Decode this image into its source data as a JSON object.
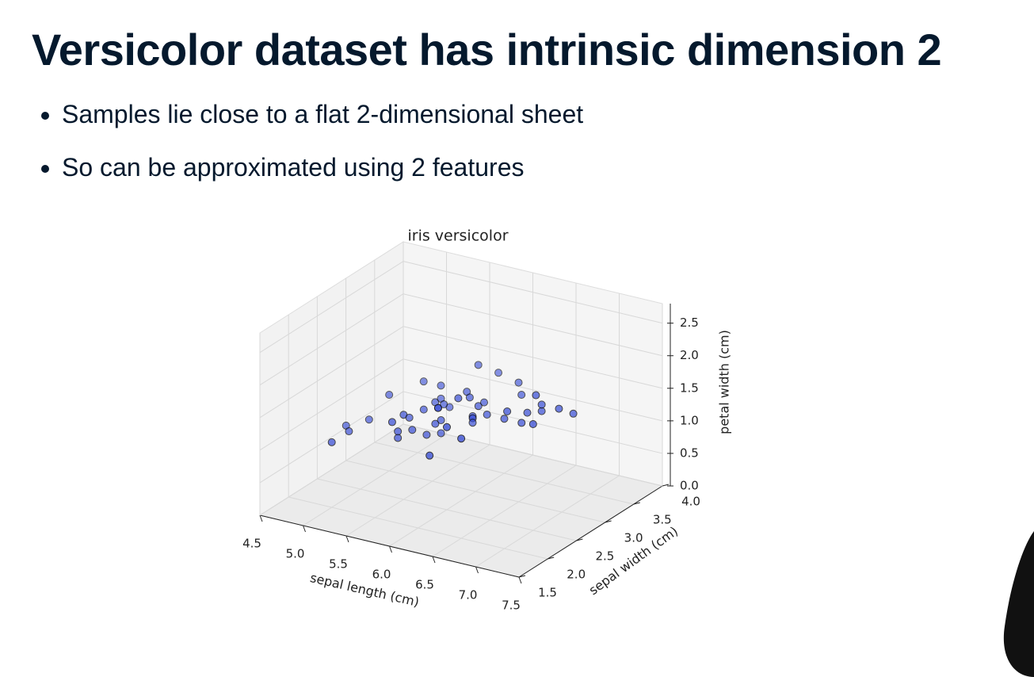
{
  "title": "Versicolor dataset has intrinsic dimension 2",
  "bullets": [
    "Samples lie close to a flat 2-dimensional sheet",
    "So can be approximated using 2 features"
  ],
  "chart_data": {
    "type": "scatter3d",
    "title": "iris versicolor",
    "x_label": "sepal length (cm)",
    "y_label": "sepal width (cm)",
    "z_label": "petal width (cm)",
    "x": [
      7.0,
      6.4,
      6.9,
      5.5,
      6.5,
      5.7,
      6.3,
      4.9,
      6.6,
      5.2,
      5.0,
      5.9,
      6.0,
      6.1,
      5.6,
      6.7,
      5.6,
      5.8,
      6.2,
      5.6,
      5.9,
      6.1,
      6.3,
      6.1,
      6.4,
      6.6,
      6.8,
      6.7,
      6.0,
      5.7,
      5.5,
      5.5,
      5.8,
      6.0,
      5.4,
      6.0,
      6.7,
      6.3,
      5.6,
      5.5,
      5.5,
      6.1,
      5.8,
      5.0,
      5.6,
      5.7,
      5.7,
      6.2,
      5.1,
      5.7
    ],
    "y": [
      3.2,
      3.2,
      3.1,
      2.3,
      2.8,
      2.8,
      3.3,
      2.4,
      2.9,
      2.7,
      2.0,
      3.0,
      2.2,
      2.9,
      2.9,
      3.1,
      3.0,
      2.7,
      2.2,
      2.5,
      3.2,
      2.8,
      2.5,
      2.8,
      2.9,
      3.0,
      2.8,
      3.0,
      2.9,
      2.6,
      2.4,
      2.4,
      2.7,
      2.7,
      3.0,
      3.4,
      3.1,
      2.3,
      3.0,
      2.5,
      2.6,
      3.0,
      2.6,
      2.3,
      2.7,
      3.0,
      2.9,
      2.9,
      2.5,
      2.8
    ],
    "z": [
      1.4,
      1.5,
      1.5,
      1.3,
      1.5,
      1.3,
      1.6,
      1.0,
      1.3,
      1.4,
      1.0,
      1.5,
      1.0,
      1.4,
      1.3,
      1.4,
      1.5,
      1.0,
      1.5,
      1.1,
      1.8,
      1.3,
      1.5,
      1.2,
      1.3,
      1.4,
      1.4,
      1.7,
      1.5,
      1.0,
      1.1,
      1.0,
      1.2,
      1.6,
      1.5,
      1.6,
      1.5,
      1.3,
      1.3,
      1.3,
      1.2,
      1.4,
      1.2,
      1.0,
      1.3,
      1.2,
      1.3,
      1.3,
      1.1,
      1.3
    ],
    "xlim": [
      4.5,
      7.5
    ],
    "ylim": [
      1.5,
      4.0
    ],
    "zlim": [
      0,
      2.8
    ],
    "xticks": [
      4.5,
      {
        "value": 5,
        "label": "5.0"
      },
      5.5,
      {
        "value": 6,
        "label": "6.0"
      },
      6.5,
      {
        "value": 7,
        "label": "7.0"
      },
      7.5
    ],
    "yticks": [
      1.5,
      {
        "value": 2,
        "label": "2.0"
      },
      2.5,
      {
        "value": 3,
        "label": "3.0"
      },
      3.5,
      {
        "value": 4,
        "label": "4.0"
      }
    ],
    "zticks": [
      {
        "value": 0,
        "label": "0.0"
      },
      0.5,
      {
        "value": 1,
        "label": "1.0"
      },
      1.5,
      {
        "value": 2,
        "label": "2.0"
      },
      2.5
    ],
    "color": "#3a4fd6",
    "grid": true
  }
}
